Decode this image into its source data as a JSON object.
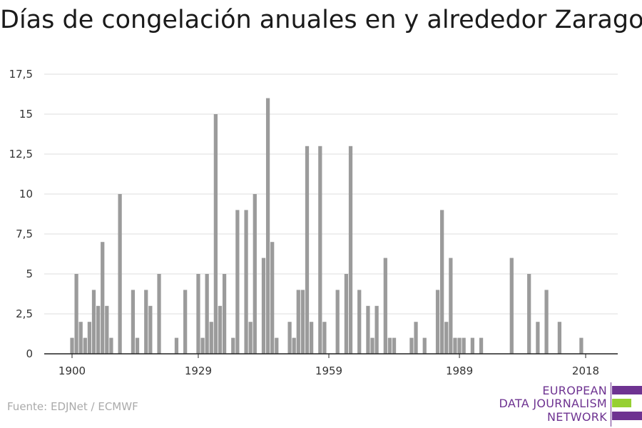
{
  "chart_data": {
    "type": "bar",
    "title": "Días de congelación anuales en y alrededor Zaragoza",
    "xlabel": "",
    "ylabel": "",
    "ylim": [
      0,
      17.5
    ],
    "xlim": [
      1900,
      2018
    ],
    "yticks": [
      {
        "value": 0,
        "label": "0"
      },
      {
        "value": 2.5,
        "label": "2,5"
      },
      {
        "value": 5,
        "label": "5"
      },
      {
        "value": 7.5,
        "label": "7,5"
      },
      {
        "value": 10,
        "label": "10"
      },
      {
        "value": 12.5,
        "label": "12,5"
      },
      {
        "value": 15,
        "label": "15"
      },
      {
        "value": 17.5,
        "label": "17,5"
      }
    ],
    "xticks": [
      {
        "value": 1900,
        "label": "1900"
      },
      {
        "value": 1929,
        "label": "1929"
      },
      {
        "value": 1959,
        "label": "1959"
      },
      {
        "value": 1989,
        "label": "1989"
      },
      {
        "value": 2018,
        "label": "2018"
      }
    ],
    "grid": true,
    "color": "#9b9b9b",
    "years": [
      1900,
      1901,
      1902,
      1903,
      1904,
      1905,
      1906,
      1907,
      1908,
      1909,
      1910,
      1911,
      1912,
      1913,
      1914,
      1915,
      1916,
      1917,
      1918,
      1919,
      1920,
      1921,
      1922,
      1923,
      1924,
      1925,
      1926,
      1927,
      1928,
      1929,
      1930,
      1931,
      1932,
      1933,
      1934,
      1935,
      1936,
      1937,
      1938,
      1939,
      1940,
      1941,
      1942,
      1943,
      1944,
      1945,
      1946,
      1947,
      1948,
      1949,
      1950,
      1951,
      1952,
      1953,
      1954,
      1955,
      1956,
      1957,
      1958,
      1959,
      1960,
      1961,
      1962,
      1963,
      1964,
      1965,
      1966,
      1967,
      1968,
      1969,
      1970,
      1971,
      1972,
      1973,
      1974,
      1975,
      1976,
      1977,
      1978,
      1979,
      1980,
      1981,
      1982,
      1983,
      1984,
      1985,
      1986,
      1987,
      1988,
      1989,
      1990,
      1991,
      1992,
      1993,
      1994,
      1995,
      1996,
      1997,
      1998,
      1999,
      2000,
      2001,
      2002,
      2003,
      2004,
      2005,
      2006,
      2007,
      2008,
      2009,
      2010,
      2011,
      2012,
      2013,
      2014,
      2015,
      2016,
      2017,
      2018
    ],
    "values": [
      1,
      5,
      2,
      1,
      2,
      4,
      3,
      7,
      3,
      1,
      0,
      10,
      0,
      0,
      4,
      1,
      0,
      4,
      3,
      0,
      5,
      0,
      0,
      0,
      1,
      0,
      4,
      0,
      0,
      5,
      1,
      5,
      2,
      15,
      3,
      5,
      0,
      1,
      9,
      0,
      9,
      2,
      10,
      0,
      6,
      16,
      7,
      1,
      0,
      0,
      2,
      1,
      4,
      4,
      13,
      2,
      0,
      13,
      2,
      0,
      0,
      4,
      0,
      5,
      13,
      0,
      4,
      0,
      3,
      1,
      3,
      0,
      6,
      1,
      1,
      0,
      0,
      0,
      1,
      2,
      0,
      1,
      0,
      0,
      4,
      9,
      2,
      6,
      1,
      1,
      1,
      0,
      1,
      0,
      1,
      0,
      0,
      0,
      0,
      0,
      0,
      6,
      0,
      0,
      0,
      5,
      0,
      2,
      0,
      4,
      0,
      0,
      2,
      0,
      0,
      0,
      0,
      1,
      0
    ]
  },
  "footer": {
    "source": "Fuente: EDJNet / ECMWF"
  },
  "logo": {
    "line1": "EUROPEAN",
    "line2": "DATA JOURNALISM",
    "line3": "NETWORK",
    "color_purple": "#6e3391",
    "color_green": "#96d033"
  }
}
